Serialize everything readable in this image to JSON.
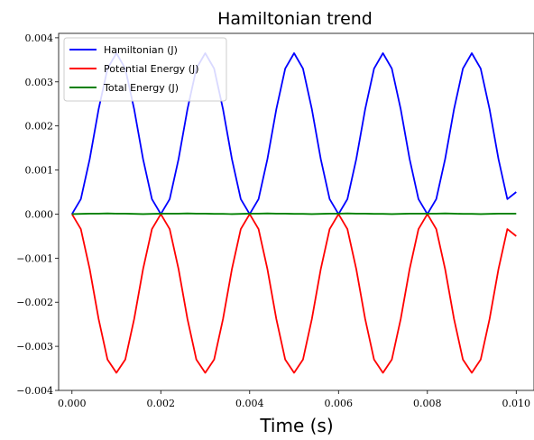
{
  "chart_data": {
    "type": "line",
    "title": "Hamiltonian trend",
    "xlabel": "Time (s)",
    "ylabel": "",
    "xlim": [
      -0.0003,
      0.0104
    ],
    "ylim": [
      -0.004,
      0.0041
    ],
    "x_ticks": [
      0,
      0.002,
      0.004,
      0.006,
      0.008,
      0.01
    ],
    "x_tick_labels": [
      "0.000",
      "0.002",
      "0.004",
      "0.006",
      "0.008",
      "0.010"
    ],
    "y_ticks": [
      -0.004,
      -0.003,
      -0.002,
      -0.001,
      0,
      0.001,
      0.002,
      0.003,
      0.004
    ],
    "y_tick_labels": [
      "−0.004",
      "−0.003",
      "−0.002",
      "−0.001",
      "0.000",
      "0.001",
      "0.002",
      "0.003",
      "0.004"
    ],
    "grid": false,
    "legend_position": "top-left",
    "x": [
      0,
      0.0002,
      0.0004,
      0.0006,
      0.0008,
      0.001,
      0.0012,
      0.0014,
      0.0016,
      0.0018,
      0.002,
      0.0022,
      0.0024,
      0.0026,
      0.0028,
      0.003,
      0.0032,
      0.0034,
      0.0036,
      0.0038,
      0.004,
      0.0042,
      0.0044,
      0.0046,
      0.0048,
      0.005,
      0.0052,
      0.0054,
      0.0056,
      0.0058,
      0.006,
      0.0062,
      0.0064,
      0.0066,
      0.0068,
      0.007,
      0.0072,
      0.0074,
      0.0076,
      0.0078,
      0.008,
      0.0082,
      0.0084,
      0.0086,
      0.0088,
      0.009,
      0.0092,
      0.0094,
      0.0096,
      0.0098,
      0.01
    ],
    "series": [
      {
        "name": "Hamiltonian (J)",
        "color": "#0000ff",
        "values": [
          0,
          0.00034,
          0.00125,
          0.00238,
          0.0033,
          0.00365,
          0.0033,
          0.00238,
          0.00125,
          0.00034,
          0,
          0.00034,
          0.00125,
          0.00238,
          0.0033,
          0.00365,
          0.0033,
          0.00238,
          0.00125,
          0.00034,
          0,
          0.00034,
          0.00125,
          0.00238,
          0.0033,
          0.00365,
          0.0033,
          0.00238,
          0.00125,
          0.00034,
          0,
          0.00034,
          0.00125,
          0.00238,
          0.0033,
          0.00365,
          0.0033,
          0.00238,
          0.00125,
          0.00034,
          0,
          0.00034,
          0.00125,
          0.00238,
          0.0033,
          0.00365,
          0.0033,
          0.00238,
          0.00125,
          0.00034,
          0.0005
        ]
      },
      {
        "name": "Potential Energy (J)",
        "color": "#ff0000",
        "values": [
          0,
          -0.00034,
          -0.00125,
          -0.00238,
          -0.0033,
          -0.0036,
          -0.0033,
          -0.00238,
          -0.00125,
          -0.00034,
          0,
          -0.00034,
          -0.00125,
          -0.00238,
          -0.0033,
          -0.0036,
          -0.0033,
          -0.00238,
          -0.00125,
          -0.00034,
          0,
          -0.00034,
          -0.00125,
          -0.00238,
          -0.0033,
          -0.0036,
          -0.0033,
          -0.00238,
          -0.00125,
          -0.00034,
          0,
          -0.00034,
          -0.00125,
          -0.00238,
          -0.0033,
          -0.0036,
          -0.0033,
          -0.00238,
          -0.00125,
          -0.00034,
          0,
          -0.00034,
          -0.00125,
          -0.00238,
          -0.0033,
          -0.0036,
          -0.0033,
          -0.00238,
          -0.00125,
          -0.00034,
          -0.0005
        ]
      },
      {
        "name": "Total Energy (J)",
        "color": "#008000",
        "values": [
          0,
          5e-06,
          1e-05,
          1e-05,
          1.5e-05,
          1e-05,
          1e-05,
          5e-06,
          0,
          5e-06,
          1e-05,
          1e-05,
          1e-05,
          1.5e-05,
          1e-05,
          1e-05,
          5e-06,
          5e-06,
          0,
          5e-06,
          1e-05,
          1e-05,
          1.5e-05,
          1e-05,
          1e-05,
          5e-06,
          5e-06,
          0,
          5e-06,
          1e-05,
          1e-05,
          1.5e-05,
          1e-05,
          1e-05,
          5e-06,
          5e-06,
          0,
          5e-06,
          1e-05,
          1e-05,
          1e-05,
          1e-05,
          1.5e-05,
          1e-05,
          5e-06,
          5e-06,
          0,
          5e-06,
          1e-05,
          1e-05,
          1e-05
        ]
      }
    ]
  }
}
